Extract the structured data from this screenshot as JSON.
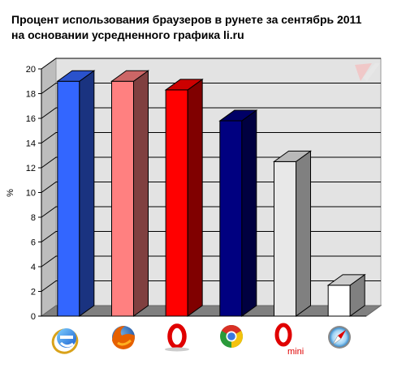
{
  "title_line1": "Процент использования браузеров в рунете за сентябрь 2011",
  "title_line2": "на основании усредненного графика li.ru",
  "watermark_icon": "liveinternet-logo-icon",
  "chart_data": {
    "type": "bar",
    "title": "Процент использования браузеров в рунете за сентябрь 2011 на основании усредненного графика li.ru",
    "xlabel": "",
    "ylabel": "%",
    "ylim": [
      0,
      20
    ],
    "yticks": [
      0,
      2,
      4,
      6,
      8,
      10,
      12,
      14,
      16,
      18,
      20
    ],
    "grid": true,
    "categories": [
      "Internet Explorer",
      "Firefox",
      "Opera",
      "Chrome",
      "Opera Mini",
      "Safari"
    ],
    "category_icons": [
      "internet-explorer-icon",
      "firefox-icon",
      "opera-icon",
      "chrome-icon",
      "opera-mini-icon",
      "safari-icon"
    ],
    "opera_mini_label": "mini",
    "values": [
      19.0,
      19.0,
      18.3,
      15.8,
      12.5,
      2.5
    ],
    "colors": [
      {
        "front": "#3366ff",
        "side": "#1a3380",
        "top": "#2a52cc"
      },
      {
        "front": "#ff8080",
        "side": "#804040",
        "top": "#cc6666"
      },
      {
        "front": "#ff0000",
        "side": "#800000",
        "top": "#cc0000"
      },
      {
        "front": "#000080",
        "side": "#000040",
        "top": "#000066"
      },
      {
        "front": "#e8e8e8",
        "side": "#808080",
        "top": "#b8b8b8"
      },
      {
        "front": "#ffffff",
        "side": "#808080",
        "top": "#cccccc"
      }
    ]
  }
}
